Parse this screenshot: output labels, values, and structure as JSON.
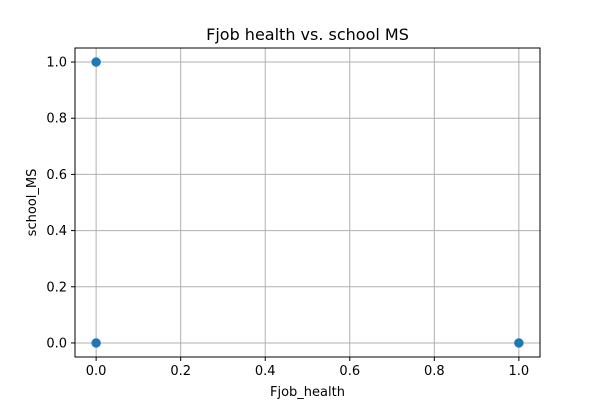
{
  "chart_data": {
    "type": "scatter",
    "title": "Fjob health vs. school MS",
    "xlabel": "Fjob_health",
    "ylabel": "school_MS",
    "xlim": [
      -0.05,
      1.05
    ],
    "ylim": [
      -0.05,
      1.05
    ],
    "xticks": [
      0.0,
      0.2,
      0.4,
      0.6,
      0.8,
      1.0
    ],
    "xtick_labels": [
      "0.0",
      "0.2",
      "0.4",
      "0.6",
      "0.8",
      "1.0"
    ],
    "yticks": [
      0.0,
      0.2,
      0.4,
      0.6,
      0.8,
      1.0
    ],
    "ytick_labels": [
      "0.0",
      "0.2",
      "0.4",
      "0.6",
      "0.8",
      "1.0"
    ],
    "grid": true,
    "points": [
      {
        "x": 0,
        "y": 1
      },
      {
        "x": 0,
        "y": 0
      },
      {
        "x": 1,
        "y": 0
      }
    ],
    "marker_color": "#1f77b4"
  }
}
